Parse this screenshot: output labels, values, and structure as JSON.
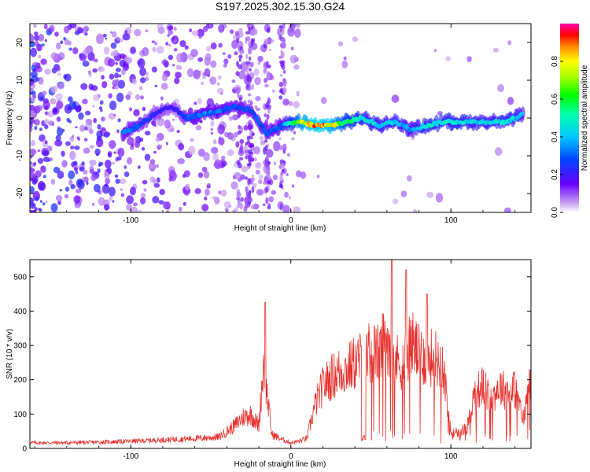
{
  "title": "S197.2025.302.15.30.G24",
  "chart_data": [
    {
      "type": "heatmap",
      "panel": "top",
      "xlabel": "Height of straight line (km)",
      "ylabel": "Frequency (Hz)",
      "xlim": [
        -163,
        150
      ],
      "ylim": [
        -25,
        25
      ],
      "xticks": [
        -100,
        0,
        100
      ],
      "xtick_labels": [
        "-100",
        "0",
        "100"
      ],
      "yticks": [
        -20,
        -10,
        0,
        10,
        20
      ],
      "ytick_labels": [
        "-20",
        "-10",
        "0",
        "10",
        "20"
      ],
      "colorbar": {
        "label": "Normalized spectral amplitude",
        "range": [
          0,
          1
        ],
        "ticks": [
          0,
          0.2,
          0.4,
          0.6,
          0.8
        ],
        "tick_labels": [
          "0.0",
          "0.2",
          "0.4",
          "0.6",
          "0.8"
        ],
        "colormap": "rainbow (white-violet-blue-cyan-green-yellow-red-magenta)"
      },
      "ridge": {
        "description": "Dominant frequency ridge near 0 Hz, strongest between 5 and 35 km",
        "x": [
          -105,
          -95,
          -85,
          -75,
          -65,
          -55,
          -45,
          -35,
          -25,
          -15,
          -5,
          5,
          15,
          25,
          35,
          45,
          55,
          65,
          75,
          85,
          95,
          105,
          115,
          125,
          135,
          145
        ],
        "frequency": [
          -4,
          -2,
          1,
          3,
          0,
          1,
          2,
          3,
          2,
          -4,
          -2,
          -1,
          -2,
          -2,
          -1,
          0,
          -2,
          -1,
          -3,
          -2,
          -1,
          -1,
          -1,
          -1,
          -1,
          1
        ],
        "amplitude": [
          0.35,
          0.3,
          0.25,
          0.2,
          0.3,
          0.35,
          0.35,
          0.3,
          0.3,
          0.3,
          0.35,
          0.75,
          0.95,
          0.85,
          0.6,
          0.5,
          0.45,
          0.45,
          0.4,
          0.5,
          0.5,
          0.5,
          0.45,
          0.45,
          0.5,
          0.4
        ]
      }
    },
    {
      "type": "line",
      "panel": "bottom",
      "xlabel": "Height of straight line (km)",
      "ylabel": "SNR (10 * v/v)",
      "xlim": [
        -163,
        150
      ],
      "ylim": [
        0,
        550
      ],
      "xticks": [
        -100,
        0,
        100
      ],
      "xtick_labels": [
        "-100",
        "0",
        "100"
      ],
      "yticks": [
        0,
        100,
        200,
        300,
        400,
        500
      ],
      "ytick_labels": [
        "0",
        "100",
        "200",
        "300",
        "400",
        "500"
      ],
      "color": "#e8302c",
      "series": [
        {
          "name": "SNR",
          "envelope_x": [
            -163,
            -140,
            -120,
            -100,
            -80,
            -60,
            -45,
            -35,
            -30,
            -25,
            -20,
            -17,
            -15,
            -12,
            -5,
            0,
            5,
            10,
            15,
            20,
            25,
            30,
            35,
            40,
            45,
            50,
            55,
            60,
            65,
            70,
            75,
            80,
            85,
            90,
            95,
            100,
            105,
            110,
            115,
            120,
            125,
            130,
            135,
            140,
            145,
            150
          ],
          "envelope_y": [
            20,
            20,
            22,
            25,
            30,
            35,
            40,
            80,
            110,
            120,
            80,
            300,
            200,
            50,
            30,
            20,
            25,
            35,
            150,
            220,
            250,
            270,
            280,
            300,
            320,
            340,
            330,
            400,
            310,
            300,
            380,
            330,
            320,
            320,
            300,
            50,
            60,
            70,
            200,
            220,
            170,
            220,
            200,
            210,
            100,
            250
          ],
          "peaks": [
            {
              "x": -16,
              "y": 425
            },
            {
              "x": 63,
              "y": 550
            },
            {
              "x": 72,
              "y": 520
            },
            {
              "x": 85,
              "y": 450
            }
          ]
        }
      ]
    }
  ]
}
